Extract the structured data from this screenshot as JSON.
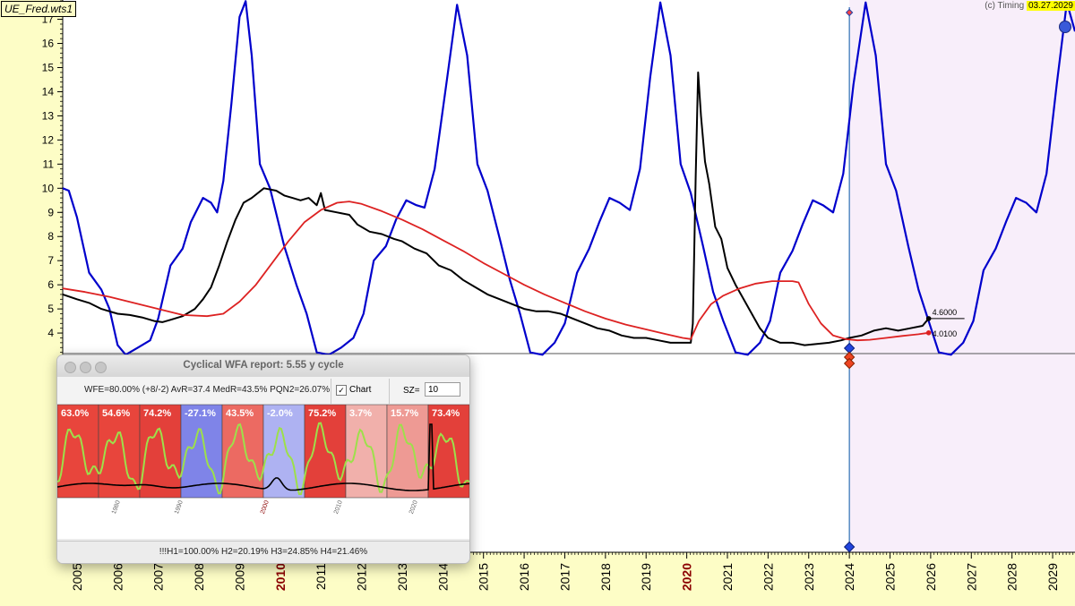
{
  "header": {
    "doc_title": "UE_Fred.wts1",
    "timing_label": "(c) Timing",
    "timing_date": "03.27.2029"
  },
  "chart_data": {
    "type": "line",
    "title": "",
    "xlim": [
      2004.65,
      2029.55
    ],
    "ylim": [
      3.15,
      17.8
    ],
    "y_ticks": [
      4,
      5,
      6,
      7,
      8,
      9,
      10,
      11,
      12,
      13,
      14,
      15,
      16,
      17
    ],
    "x_ticks": [
      2005,
      2006,
      2007,
      2008,
      2009,
      2010,
      2011,
      2012,
      2013,
      2014,
      2015,
      2016,
      2017,
      2018,
      2019,
      2020,
      2021,
      2022,
      2023,
      2024,
      2025,
      2026,
      2027,
      2028,
      2029
    ],
    "highlighted_years": [
      2010,
      2020
    ],
    "grid": false,
    "forecast_start": 2024.0,
    "series": [
      {
        "color": "#0000cc",
        "role": "cycle",
        "points": [
          [
            2004.65,
            10.0
          ],
          [
            2004.8,
            9.9
          ],
          [
            2005.0,
            8.8
          ],
          [
            2005.3,
            6.5
          ],
          [
            2005.6,
            5.8
          ],
          [
            2005.8,
            5.0
          ],
          [
            2006.0,
            3.5
          ],
          [
            2006.2,
            3.1
          ],
          [
            2006.5,
            3.4
          ],
          [
            2006.8,
            3.7
          ],
          [
            2007.0,
            4.6
          ],
          [
            2007.3,
            6.8
          ],
          [
            2007.6,
            7.5
          ],
          [
            2007.8,
            8.6
          ],
          [
            2008.1,
            9.6
          ],
          [
            2008.3,
            9.4
          ],
          [
            2008.45,
            9.0
          ],
          [
            2008.6,
            10.3
          ],
          [
            2008.8,
            13.5
          ],
          [
            2009.0,
            17.1
          ],
          [
            2009.15,
            17.75
          ],
          [
            2009.3,
            15.5
          ],
          [
            2009.5,
            11.0
          ],
          [
            2009.75,
            10.0
          ],
          [
            2010.1,
            7.6
          ],
          [
            2010.4,
            6.0
          ],
          [
            2010.65,
            4.8
          ],
          [
            2010.9,
            3.2
          ],
          [
            2011.2,
            3.1
          ],
          [
            2011.5,
            3.4
          ],
          [
            2011.8,
            3.8
          ],
          [
            2012.05,
            4.8
          ],
          [
            2012.3,
            7.0
          ],
          [
            2012.6,
            7.6
          ],
          [
            2012.85,
            8.7
          ],
          [
            2013.1,
            9.5
          ],
          [
            2013.35,
            9.3
          ],
          [
            2013.55,
            9.2
          ],
          [
            2013.8,
            10.8
          ],
          [
            2014.1,
            14.5
          ],
          [
            2014.35,
            17.6
          ],
          [
            2014.6,
            15.5
          ],
          [
            2014.85,
            11.0
          ],
          [
            2015.1,
            9.9
          ],
          [
            2015.4,
            7.9
          ],
          [
            2015.65,
            6.2
          ],
          [
            2015.9,
            4.8
          ],
          [
            2016.15,
            3.2
          ],
          [
            2016.45,
            3.1
          ],
          [
            2016.75,
            3.6
          ],
          [
            2017.0,
            4.4
          ],
          [
            2017.3,
            6.5
          ],
          [
            2017.6,
            7.5
          ],
          [
            2017.85,
            8.6
          ],
          [
            2018.1,
            9.6
          ],
          [
            2018.35,
            9.4
          ],
          [
            2018.6,
            9.1
          ],
          [
            2018.85,
            10.8
          ],
          [
            2019.1,
            14.6
          ],
          [
            2019.35,
            17.7
          ],
          [
            2019.6,
            15.5
          ],
          [
            2019.85,
            11.0
          ],
          [
            2020.1,
            9.8
          ],
          [
            2020.4,
            7.6
          ],
          [
            2020.65,
            5.7
          ],
          [
            2020.9,
            4.5
          ],
          [
            2021.2,
            3.2
          ],
          [
            2021.5,
            3.1
          ],
          [
            2021.8,
            3.6
          ],
          [
            2022.05,
            4.5
          ],
          [
            2022.3,
            6.5
          ],
          [
            2022.6,
            7.4
          ],
          [
            2022.85,
            8.5
          ],
          [
            2023.1,
            9.5
          ],
          [
            2023.35,
            9.3
          ],
          [
            2023.6,
            9.0
          ],
          [
            2023.85,
            10.6
          ],
          [
            2024.1,
            14.3
          ],
          [
            2024.4,
            17.7
          ],
          [
            2024.65,
            15.5
          ],
          [
            2024.9,
            11.0
          ],
          [
            2025.15,
            9.9
          ],
          [
            2025.45,
            7.6
          ],
          [
            2025.7,
            5.8
          ],
          [
            2025.95,
            4.5
          ],
          [
            2026.2,
            3.2
          ],
          [
            2026.5,
            3.1
          ],
          [
            2026.8,
            3.6
          ],
          [
            2027.05,
            4.5
          ],
          [
            2027.3,
            6.6
          ],
          [
            2027.6,
            7.5
          ],
          [
            2027.85,
            8.6
          ],
          [
            2028.1,
            9.6
          ],
          [
            2028.35,
            9.4
          ],
          [
            2028.6,
            9.0
          ],
          [
            2028.85,
            10.6
          ],
          [
            2029.1,
            14.3
          ],
          [
            2029.35,
            17.7
          ],
          [
            2029.55,
            16.5
          ]
        ]
      },
      {
        "color": "#000000",
        "role": "actual",
        "points": [
          [
            2004.65,
            5.6
          ],
          [
            2005.0,
            5.4
          ],
          [
            2005.3,
            5.25
          ],
          [
            2005.6,
            5.0
          ],
          [
            2006.0,
            4.8
          ],
          [
            2006.3,
            4.75
          ],
          [
            2006.6,
            4.65
          ],
          [
            2006.9,
            4.5
          ],
          [
            2007.1,
            4.45
          ],
          [
            2007.3,
            4.55
          ],
          [
            2007.6,
            4.7
          ],
          [
            2007.9,
            5.0
          ],
          [
            2008.1,
            5.4
          ],
          [
            2008.3,
            5.9
          ],
          [
            2008.5,
            6.8
          ],
          [
            2008.7,
            7.8
          ],
          [
            2008.9,
            8.7
          ],
          [
            2009.1,
            9.4
          ],
          [
            2009.3,
            9.6
          ],
          [
            2009.6,
            10.0
          ],
          [
            2009.9,
            9.9
          ],
          [
            2010.1,
            9.7
          ],
          [
            2010.3,
            9.6
          ],
          [
            2010.5,
            9.5
          ],
          [
            2010.7,
            9.6
          ],
          [
            2010.9,
            9.3
          ],
          [
            2011.0,
            9.8
          ],
          [
            2011.1,
            9.1
          ],
          [
            2011.4,
            9.0
          ],
          [
            2011.7,
            8.9
          ],
          [
            2011.9,
            8.5
          ],
          [
            2012.2,
            8.2
          ],
          [
            2012.5,
            8.1
          ],
          [
            2012.8,
            7.9
          ],
          [
            2013.0,
            7.8
          ],
          [
            2013.3,
            7.5
          ],
          [
            2013.6,
            7.3
          ],
          [
            2013.9,
            6.8
          ],
          [
            2014.2,
            6.6
          ],
          [
            2014.5,
            6.2
          ],
          [
            2014.8,
            5.9
          ],
          [
            2015.1,
            5.6
          ],
          [
            2015.4,
            5.4
          ],
          [
            2015.7,
            5.2
          ],
          [
            2016.0,
            5.0
          ],
          [
            2016.3,
            4.9
          ],
          [
            2016.6,
            4.9
          ],
          [
            2016.9,
            4.8
          ],
          [
            2017.2,
            4.6
          ],
          [
            2017.5,
            4.4
          ],
          [
            2017.8,
            4.2
          ],
          [
            2018.1,
            4.1
          ],
          [
            2018.4,
            3.9
          ],
          [
            2018.7,
            3.8
          ],
          [
            2019.0,
            3.8
          ],
          [
            2019.3,
            3.7
          ],
          [
            2019.6,
            3.6
          ],
          [
            2019.85,
            3.6
          ],
          [
            2020.1,
            3.6
          ],
          [
            2020.15,
            4.4
          ],
          [
            2020.22,
            10.5
          ],
          [
            2020.28,
            14.8
          ],
          [
            2020.35,
            13.0
          ],
          [
            2020.45,
            11.1
          ],
          [
            2020.55,
            10.2
          ],
          [
            2020.7,
            8.4
          ],
          [
            2020.85,
            7.9
          ],
          [
            2021.0,
            6.7
          ],
          [
            2021.2,
            6.0
          ],
          [
            2021.4,
            5.4
          ],
          [
            2021.6,
            4.8
          ],
          [
            2021.8,
            4.2
          ],
          [
            2022.0,
            3.8
          ],
          [
            2022.3,
            3.6
          ],
          [
            2022.6,
            3.6
          ],
          [
            2022.9,
            3.5
          ],
          [
            2023.2,
            3.55
          ],
          [
            2023.5,
            3.6
          ],
          [
            2023.8,
            3.7
          ],
          [
            2024.0,
            3.8
          ],
          [
            2024.3,
            3.9
          ],
          [
            2024.6,
            4.1
          ],
          [
            2024.9,
            4.2
          ],
          [
            2025.2,
            4.1
          ],
          [
            2025.5,
            4.2
          ],
          [
            2025.8,
            4.3
          ],
          [
            2025.95,
            4.6
          ]
        ]
      },
      {
        "color": "#dd2222",
        "role": "model",
        "points": [
          [
            2004.65,
            5.85
          ],
          [
            2005.2,
            5.7
          ],
          [
            2005.8,
            5.5
          ],
          [
            2006.4,
            5.25
          ],
          [
            2007.0,
            5.0
          ],
          [
            2007.6,
            4.75
          ],
          [
            2008.2,
            4.7
          ],
          [
            2008.6,
            4.8
          ],
          [
            2009.0,
            5.3
          ],
          [
            2009.4,
            6.0
          ],
          [
            2009.8,
            6.9
          ],
          [
            2010.2,
            7.8
          ],
          [
            2010.6,
            8.6
          ],
          [
            2011.0,
            9.1
          ],
          [
            2011.4,
            9.4
          ],
          [
            2011.7,
            9.45
          ],
          [
            2012.0,
            9.35
          ],
          [
            2012.5,
            9.05
          ],
          [
            2013.0,
            8.7
          ],
          [
            2013.5,
            8.3
          ],
          [
            2014.0,
            7.85
          ],
          [
            2014.5,
            7.4
          ],
          [
            2015.0,
            6.9
          ],
          [
            2015.5,
            6.45
          ],
          [
            2016.0,
            6.0
          ],
          [
            2016.5,
            5.6
          ],
          [
            2017.0,
            5.25
          ],
          [
            2017.5,
            4.9
          ],
          [
            2018.0,
            4.6
          ],
          [
            2018.5,
            4.35
          ],
          [
            2019.0,
            4.15
          ],
          [
            2019.5,
            3.95
          ],
          [
            2019.9,
            3.8
          ],
          [
            2020.1,
            3.75
          ],
          [
            2020.3,
            4.5
          ],
          [
            2020.6,
            5.2
          ],
          [
            2020.9,
            5.55
          ],
          [
            2021.3,
            5.85
          ],
          [
            2021.7,
            6.05
          ],
          [
            2022.1,
            6.15
          ],
          [
            2022.6,
            6.15
          ],
          [
            2022.75,
            6.1
          ],
          [
            2023.0,
            5.2
          ],
          [
            2023.3,
            4.4
          ],
          [
            2023.6,
            3.9
          ],
          [
            2023.9,
            3.75
          ],
          [
            2024.2,
            3.7
          ],
          [
            2024.5,
            3.72
          ],
          [
            2024.9,
            3.8
          ],
          [
            2025.3,
            3.88
          ],
          [
            2025.7,
            3.95
          ],
          [
            2025.95,
            4.01
          ]
        ]
      }
    ],
    "end_labels": [
      {
        "text": "4.6000",
        "x": 2025.95,
        "y": 4.6,
        "color": "#000000"
      },
      {
        "text": "4.0100",
        "x": 2025.95,
        "y": 4.01,
        "color": "#dd2222"
      }
    ]
  },
  "report": {
    "window_title": "Cyclical WFA report:  5.55 y cycle",
    "stats_text": "WFE=80.00% (+8/-2) AvR=37.4 MedR=43.5% PQN2=26.07%",
    "chart_checkbox_label": "Chart",
    "chart_checked": true,
    "sz_label": "SZ=",
    "sz_value": "10",
    "footer_text": "!!!H1=100.00% H2=20.19% H3=24.85% H4=21.46%",
    "windows": [
      {
        "label": "63.0%",
        "color": "#e8453c"
      },
      {
        "label": "54.6%",
        "color": "#e8453c"
      },
      {
        "label": "74.2%",
        "color": "#e3403a"
      },
      {
        "label": "-27.1%",
        "color": "#7f84e8"
      },
      {
        "label": "43.5%",
        "color": "#ec6a62"
      },
      {
        "label": "-2.0%",
        "color": "#aeb2f2"
      },
      {
        "label": "75.2%",
        "color": "#e3403a"
      },
      {
        "label": "3.7%",
        "color": "#f1b0ab"
      },
      {
        "label": "15.7%",
        "color": "#ee9a94"
      },
      {
        "label": "73.4%",
        "color": "#e3403a"
      }
    ],
    "x_axis_labels": [
      {
        "text": "1980",
        "color": "#666666"
      },
      {
        "text": "1990",
        "color": "#666666"
      },
      {
        "text": "2000",
        "color": "#8b0000"
      },
      {
        "text": "2010",
        "color": "#666666"
      },
      {
        "text": "2020",
        "color": "#666666"
      }
    ]
  }
}
